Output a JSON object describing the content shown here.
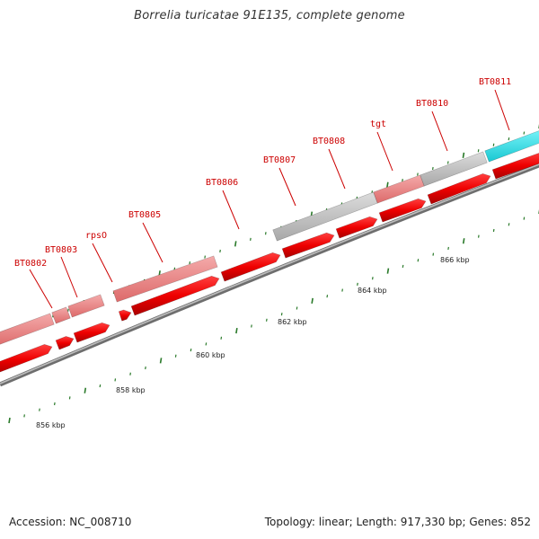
{
  "title": "Borrelia turicatae 91E135, complete genome",
  "footer": {
    "accession": "Accession: NC_008710",
    "summary": "Topology: linear; Length: 917,330 bp; Genes: 852"
  },
  "scale_unit": "kbp",
  "scale_labels": [
    "856 kbp",
    "858 kbp",
    "860 kbp",
    "862 kbp",
    "864 kbp",
    "866 kbp"
  ],
  "genes": [
    "BT0802",
    "BT0803",
    "rpsO",
    "BT0805",
    "BT0806",
    "BT0807",
    "BT0808",
    "tgt",
    "BT0810",
    "BT0811"
  ],
  "colors": {
    "gene_cds": "#ee0000",
    "gene_light": "#ee8888",
    "gene_grey": "#c0c0c0",
    "gene_cyan": "#22e6ee",
    "backbone": "#808080",
    "ticks": "#2a7a2a",
    "label": "#cc0000"
  },
  "icons": [
    "title-text",
    "gene-map"
  ]
}
